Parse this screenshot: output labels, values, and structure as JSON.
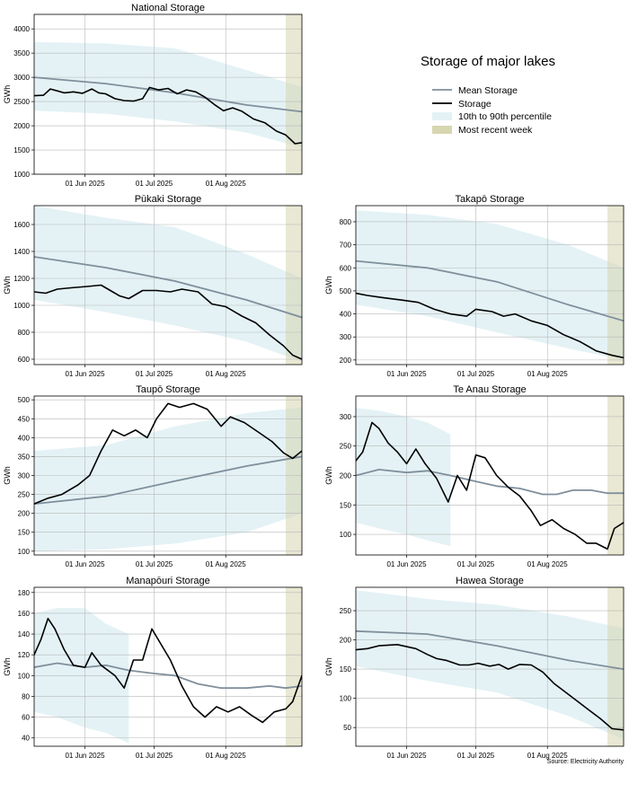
{
  "figure": {
    "legend": {
      "title": "Storage of major lakes",
      "items": [
        {
          "label": "Mean Storage",
          "kind": "line",
          "color": "#7f8f9c"
        },
        {
          "label": "Storage",
          "kind": "line",
          "color": "#000000"
        },
        {
          "label": "10th to 90th percentile",
          "kind": "patch",
          "color": "#e4f2f5"
        },
        {
          "label": "Most recent week",
          "kind": "patch",
          "color": "#d6d6b0"
        }
      ]
    },
    "source": "Source: Electricity Authority",
    "colors": {
      "mean": "#7f8f9c",
      "storage": "#000000",
      "band": "#e4f2f5",
      "recent": "#d6d6b0",
      "grid": "#b8b8b8"
    }
  },
  "chart_data": [
    {
      "type": "area",
      "title": "National Storage",
      "ylabel": "GWh",
      "x_range": [
        "2025-05-10",
        "2025-09-03"
      ],
      "x_ticks": [
        "2025-06-01",
        "2025-07-01",
        "2025-08-01"
      ],
      "x_tick_labels": [
        "01 Jun 2025",
        "01 Jul 2025",
        "01 Aug 2025"
      ],
      "ylim": [
        1000,
        4300
      ],
      "y_ticks": [
        1000,
        1500,
        2000,
        2500,
        3000,
        3500,
        4000
      ],
      "recent_week": [
        "2025-08-27",
        "2025-09-03"
      ],
      "grid": true,
      "series": [
        {
          "name": "Mean Storage",
          "x": [
            "2025-05-10",
            "2025-06-10",
            "2025-07-10",
            "2025-08-10",
            "2025-09-03"
          ],
          "values": [
            3000,
            2870,
            2680,
            2430,
            2290
          ]
        },
        {
          "name": "Storage",
          "x": [
            "2025-05-10",
            "2025-05-14",
            "2025-05-17",
            "2025-05-20",
            "2025-05-23",
            "2025-05-27",
            "2025-05-31",
            "2025-06-04",
            "2025-06-07",
            "2025-06-10",
            "2025-06-14",
            "2025-06-18",
            "2025-06-22",
            "2025-06-26",
            "2025-06-29",
            "2025-07-03",
            "2025-07-07",
            "2025-07-11",
            "2025-07-15",
            "2025-07-19",
            "2025-07-23",
            "2025-07-27",
            "2025-07-31",
            "2025-08-04",
            "2025-08-08",
            "2025-08-13",
            "2025-08-18",
            "2025-08-23",
            "2025-08-27",
            "2025-08-31",
            "2025-09-03"
          ],
          "values": [
            2620,
            2630,
            2760,
            2720,
            2680,
            2700,
            2670,
            2760,
            2680,
            2660,
            2560,
            2520,
            2510,
            2560,
            2790,
            2740,
            2770,
            2660,
            2740,
            2700,
            2590,
            2440,
            2310,
            2370,
            2300,
            2140,
            2060,
            1890,
            1810,
            1630,
            1650
          ]
        }
      ],
      "band_10th": [
        2310,
        2250,
        2090,
        1860,
        1550
      ],
      "band_90th": [
        3730,
        3700,
        3600,
        3150,
        2800
      ]
    },
    {
      "type": "area",
      "title": "Pūkaki Storage",
      "ylabel": "GWh",
      "x_range": [
        "2025-05-10",
        "2025-09-03"
      ],
      "x_ticks": [
        "2025-06-01",
        "2025-07-01",
        "2025-08-01"
      ],
      "x_tick_labels": [
        "01 Jun 2025",
        "01 Jul 2025",
        "01 Aug 2025"
      ],
      "ylim": [
        560,
        1740
      ],
      "y_ticks": [
        600,
        800,
        1000,
        1200,
        1400,
        1600
      ],
      "recent_week": [
        "2025-08-27",
        "2025-09-03"
      ],
      "grid": true,
      "series": [
        {
          "name": "Mean Storage",
          "x": [
            "2025-05-10",
            "2025-06-10",
            "2025-07-10",
            "2025-08-10",
            "2025-09-03"
          ],
          "values": [
            1360,
            1280,
            1180,
            1040,
            910
          ]
        },
        {
          "name": "Storage",
          "x": [
            "2025-05-10",
            "2025-05-15",
            "2025-05-20",
            "2025-05-26",
            "2025-06-02",
            "2025-06-08",
            "2025-06-12",
            "2025-06-16",
            "2025-06-20",
            "2025-06-26",
            "2025-07-02",
            "2025-07-08",
            "2025-07-13",
            "2025-07-20",
            "2025-07-26",
            "2025-08-01",
            "2025-08-08",
            "2025-08-14",
            "2025-08-20",
            "2025-08-26",
            "2025-08-30",
            "2025-09-03"
          ],
          "values": [
            1100,
            1090,
            1120,
            1130,
            1140,
            1150,
            1110,
            1070,
            1050,
            1110,
            1110,
            1100,
            1120,
            1100,
            1010,
            990,
            920,
            870,
            780,
            700,
            630,
            600
          ]
        }
      ],
      "band_10th": [
        1040,
        950,
        850,
        730,
        580
      ],
      "band_90th": [
        1740,
        1650,
        1580,
        1380,
        1200
      ]
    },
    {
      "type": "area",
      "title": "Takapō Storage",
      "ylabel": "GWh",
      "x_range": [
        "2025-05-10",
        "2025-09-03"
      ],
      "x_ticks": [
        "2025-06-01",
        "2025-07-01",
        "2025-08-01"
      ],
      "x_tick_labels": [
        "01 Jun 2025",
        "01 Jul 2025",
        "01 Aug 2025"
      ],
      "ylim": [
        180,
        870
      ],
      "y_ticks": [
        200,
        300,
        400,
        500,
        600,
        700,
        800
      ],
      "recent_week": [
        "2025-08-27",
        "2025-09-03"
      ],
      "grid": true,
      "series": [
        {
          "name": "Mean Storage",
          "x": [
            "2025-05-10",
            "2025-06-10",
            "2025-07-10",
            "2025-08-10",
            "2025-09-03"
          ],
          "values": [
            630,
            600,
            540,
            440,
            370
          ]
        },
        {
          "name": "Storage",
          "x": [
            "2025-05-10",
            "2025-05-15",
            "2025-05-22",
            "2025-05-30",
            "2025-06-06",
            "2025-06-13",
            "2025-06-20",
            "2025-06-27",
            "2025-07-01",
            "2025-07-08",
            "2025-07-13",
            "2025-07-18",
            "2025-07-25",
            "2025-08-01",
            "2025-08-08",
            "2025-08-15",
            "2025-08-22",
            "2025-08-29",
            "2025-09-03"
          ],
          "values": [
            490,
            480,
            470,
            460,
            450,
            420,
            400,
            390,
            420,
            410,
            390,
            400,
            370,
            350,
            310,
            280,
            240,
            220,
            210
          ]
        }
      ],
      "band_10th": [
        440,
        390,
        320,
        250,
        200
      ],
      "band_90th": [
        850,
        830,
        790,
        700,
        600
      ]
    },
    {
      "type": "area",
      "title": "Taupō Storage",
      "ylabel": "GWh",
      "x_range": [
        "2025-05-10",
        "2025-09-03"
      ],
      "x_ticks": [
        "2025-06-01",
        "2025-07-01",
        "2025-08-01"
      ],
      "x_tick_labels": [
        "01 Jun 2025",
        "01 Jul 2025",
        "01 Aug 2025"
      ],
      "ylim": [
        90,
        510
      ],
      "y_ticks": [
        100,
        150,
        200,
        250,
        300,
        350,
        400,
        450,
        500
      ],
      "recent_week": [
        "2025-08-27",
        "2025-09-03"
      ],
      "grid": true,
      "series": [
        {
          "name": "Mean Storage",
          "x": [
            "2025-05-10",
            "2025-06-10",
            "2025-07-10",
            "2025-08-10",
            "2025-09-03"
          ],
          "values": [
            225,
            245,
            285,
            325,
            350
          ]
        },
        {
          "name": "Storage",
          "x": [
            "2025-05-10",
            "2025-05-16",
            "2025-05-22",
            "2025-05-29",
            "2025-06-03",
            "2025-06-08",
            "2025-06-13",
            "2025-06-18",
            "2025-06-23",
            "2025-06-28",
            "2025-07-02",
            "2025-07-07",
            "2025-07-12",
            "2025-07-18",
            "2025-07-24",
            "2025-07-30",
            "2025-08-03",
            "2025-08-09",
            "2025-08-15",
            "2025-08-21",
            "2025-08-26",
            "2025-08-30",
            "2025-09-03"
          ],
          "values": [
            225,
            240,
            250,
            275,
            300,
            365,
            420,
            405,
            420,
            400,
            450,
            490,
            480,
            490,
            475,
            430,
            455,
            440,
            415,
            390,
            360,
            345,
            365
          ]
        }
      ],
      "band_10th": [
        100,
        105,
        120,
        150,
        200
      ],
      "band_90th": [
        365,
        380,
        430,
        465,
        480
      ]
    },
    {
      "type": "area",
      "title": "Te Anau Storage",
      "ylabel": "GWh",
      "x_range": [
        "2025-05-10",
        "2025-09-03"
      ],
      "x_ticks": [
        "2025-06-01",
        "2025-07-01",
        "2025-08-01"
      ],
      "x_tick_labels": [
        "01 Jun 2025",
        "01 Jul 2025",
        "01 Aug 2025"
      ],
      "ylim": [
        65,
        335
      ],
      "y_ticks": [
        100,
        150,
        200,
        250,
        300
      ],
      "recent_week": [
        "2025-08-27",
        "2025-09-03"
      ],
      "grid": true,
      "series": [
        {
          "name": "Mean Storage",
          "x": [
            "2025-05-10",
            "2025-05-20",
            "2025-06-01",
            "2025-06-10",
            "2025-06-20",
            "2025-07-01",
            "2025-07-10",
            "2025-07-20",
            "2025-07-30",
            "2025-08-05",
            "2025-08-12",
            "2025-08-20",
            "2025-08-27",
            "2025-09-03"
          ],
          "values": [
            200,
            210,
            205,
            208,
            200,
            190,
            182,
            178,
            168,
            168,
            175,
            175,
            170,
            170
          ]
        },
        {
          "name": "Storage",
          "x": [
            "2025-05-10",
            "2025-05-13",
            "2025-05-17",
            "2025-05-20",
            "2025-05-24",
            "2025-05-28",
            "2025-06-01",
            "2025-06-05",
            "2025-06-09",
            "2025-06-14",
            "2025-06-19",
            "2025-06-23",
            "2025-06-27",
            "2025-07-01",
            "2025-07-05",
            "2025-07-10",
            "2025-07-15",
            "2025-07-20",
            "2025-07-25",
            "2025-07-29",
            "2025-08-03",
            "2025-08-08",
            "2025-08-13",
            "2025-08-18",
            "2025-08-22",
            "2025-08-27",
            "2025-08-30",
            "2025-09-03"
          ],
          "values": [
            225,
            240,
            290,
            280,
            255,
            240,
            220,
            245,
            220,
            195,
            155,
            200,
            175,
            235,
            230,
            200,
            180,
            165,
            140,
            115,
            125,
            110,
            100,
            85,
            85,
            75,
            110,
            120
          ]
        }
      ],
      "band_10th": [
        120,
        110,
        100,
        90,
        80
      ],
      "band_90th": [
        315,
        310,
        300,
        290,
        270
      ]
    },
    {
      "type": "area",
      "title": "Manapōuri  Storage",
      "ylabel": "GWh",
      "x_range": [
        "2025-05-10",
        "2025-09-03"
      ],
      "x_ticks": [
        "2025-06-01",
        "2025-07-01",
        "2025-08-01"
      ],
      "x_tick_labels": [
        "01 Jun 2025",
        "01 Jul 2025",
        "01 Aug 2025"
      ],
      "ylim": [
        32,
        185
      ],
      "y_ticks": [
        40,
        60,
        80,
        100,
        120,
        140,
        160,
        180
      ],
      "recent_week": [
        "2025-08-27",
        "2025-09-03"
      ],
      "grid": true,
      "series": [
        {
          "name": "Mean Storage",
          "x": [
            "2025-05-10",
            "2025-05-20",
            "2025-06-01",
            "2025-06-10",
            "2025-06-20",
            "2025-07-01",
            "2025-07-10",
            "2025-07-20",
            "2025-07-30",
            "2025-08-10",
            "2025-08-20",
            "2025-08-27",
            "2025-09-03"
          ],
          "values": [
            108,
            112,
            108,
            110,
            105,
            102,
            100,
            92,
            88,
            88,
            90,
            88,
            90
          ]
        },
        {
          "name": "Storage",
          "x": [
            "2025-05-10",
            "2025-05-13",
            "2025-05-16",
            "2025-05-19",
            "2025-05-23",
            "2025-05-27",
            "2025-06-01",
            "2025-06-04",
            "2025-06-08",
            "2025-06-14",
            "2025-06-18",
            "2025-06-22",
            "2025-06-26",
            "2025-06-30",
            "2025-07-04",
            "2025-07-08",
            "2025-07-13",
            "2025-07-18",
            "2025-07-23",
            "2025-07-28",
            "2025-08-02",
            "2025-08-07",
            "2025-08-12",
            "2025-08-17",
            "2025-08-22",
            "2025-08-27",
            "2025-08-30",
            "2025-09-03"
          ],
          "values": [
            120,
            135,
            155,
            145,
            125,
            110,
            108,
            122,
            110,
            100,
            88,
            115,
            115,
            145,
            130,
            115,
            90,
            70,
            60,
            70,
            65,
            70,
            62,
            55,
            65,
            68,
            75,
            100
          ]
        }
      ],
      "band_10th": [
        65,
        60,
        50,
        45,
        35
      ],
      "band_90th": [
        160,
        165,
        165,
        150,
        140
      ]
    },
    {
      "type": "area",
      "title": "Hawea Storage",
      "ylabel": "GWh",
      "x_range": [
        "2025-05-10",
        "2025-09-03"
      ],
      "x_ticks": [
        "2025-06-01",
        "2025-07-01",
        "2025-08-01"
      ],
      "x_tick_labels": [
        "01 Jun 2025",
        "01 Jul 2025",
        "01 Aug 2025"
      ],
      "ylim": [
        18,
        290
      ],
      "y_ticks": [
        50,
        100,
        150,
        200,
        250
      ],
      "recent_week": [
        "2025-08-27",
        "2025-09-03"
      ],
      "grid": true,
      "series": [
        {
          "name": "Mean Storage",
          "x": [
            "2025-05-10",
            "2025-06-10",
            "2025-07-10",
            "2025-08-10",
            "2025-09-03"
          ],
          "values": [
            215,
            210,
            190,
            165,
            150
          ]
        },
        {
          "name": "Storage",
          "x": [
            "2025-05-10",
            "2025-05-15",
            "2025-05-20",
            "2025-05-28",
            "2025-06-05",
            "2025-06-10",
            "2025-06-14",
            "2025-06-18",
            "2025-06-24",
            "2025-06-28",
            "2025-07-02",
            "2025-07-07",
            "2025-07-11",
            "2025-07-15",
            "2025-07-20",
            "2025-07-25",
            "2025-07-30",
            "2025-08-04",
            "2025-08-09",
            "2025-08-14",
            "2025-08-19",
            "2025-08-24",
            "2025-08-29",
            "2025-09-03"
          ],
          "values": [
            183,
            185,
            190,
            192,
            185,
            175,
            168,
            165,
            157,
            157,
            160,
            155,
            158,
            150,
            158,
            157,
            145,
            125,
            110,
            95,
            80,
            65,
            48,
            46
          ]
        }
      ],
      "band_10th": [
        155,
        130,
        110,
        70,
        30
      ],
      "band_90th": [
        285,
        270,
        260,
        240,
        220
      ]
    }
  ]
}
